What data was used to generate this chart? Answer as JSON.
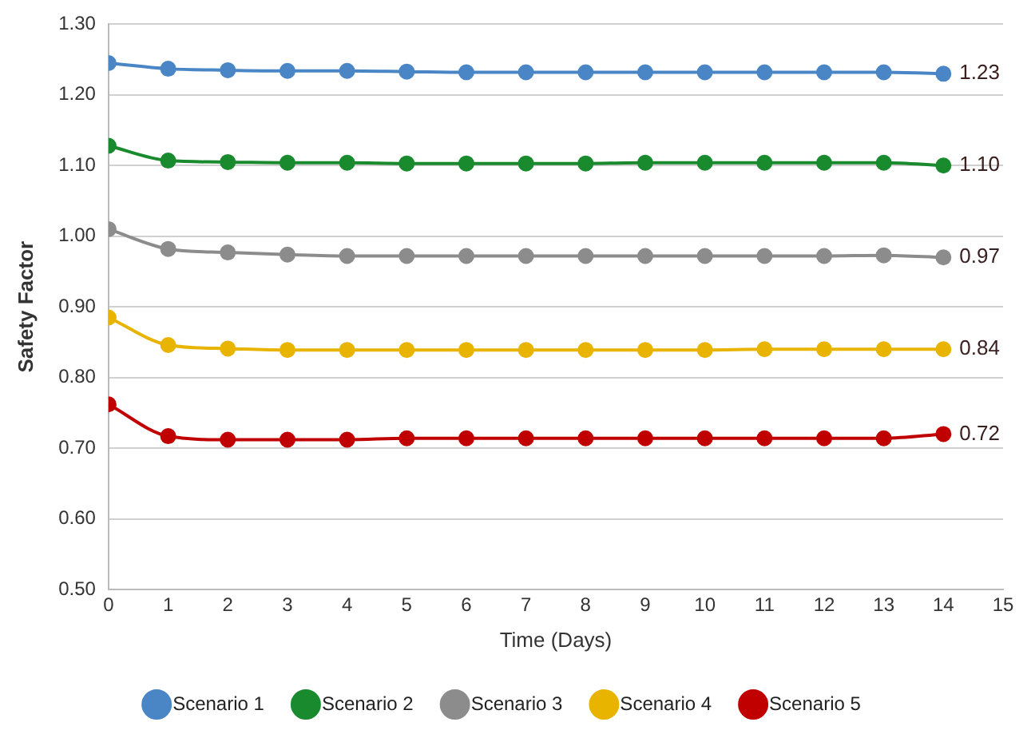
{
  "chart_data": {
    "type": "line",
    "xlabel": "Time (Days)",
    "ylabel": "Safety Factor",
    "x": [
      0,
      1,
      2,
      3,
      4,
      5,
      6,
      7,
      8,
      9,
      10,
      11,
      12,
      13,
      14
    ],
    "xlim": [
      0,
      15
    ],
    "xticks": [
      0,
      1,
      2,
      3,
      4,
      5,
      6,
      7,
      8,
      9,
      10,
      11,
      12,
      13,
      14,
      15
    ],
    "ylim": [
      0.5,
      1.3
    ],
    "yticks": [
      {
        "value": 0.5,
        "label": "0.50"
      },
      {
        "value": 0.6,
        "label": "0.60"
      },
      {
        "value": 0.7,
        "label": "0.70"
      },
      {
        "value": 0.8,
        "label": "0.80"
      },
      {
        "value": 0.9,
        "label": "0.90"
      },
      {
        "value": 1.0,
        "label": "1.00"
      },
      {
        "value": 1.1,
        "label": "1.10"
      },
      {
        "value": 1.2,
        "label": "1.20"
      },
      {
        "value": 1.3,
        "label": "1.30"
      }
    ],
    "grid": "y",
    "legend": "bottom",
    "marker": "circle",
    "line_style": "solid",
    "series": [
      {
        "name": "Scenario 1",
        "color": "#4a86c5",
        "values": [
          1.245,
          1.237,
          1.235,
          1.234,
          1.234,
          1.233,
          1.232,
          1.232,
          1.232,
          1.232,
          1.232,
          1.232,
          1.232,
          1.232,
          1.23
        ],
        "value_labels": [
          null,
          null,
          null,
          null,
          null,
          null,
          null,
          null,
          null,
          null,
          null,
          null,
          null,
          null,
          "1.23"
        ]
      },
      {
        "name": "Scenario 2",
        "color": "#1a8a2e",
        "values": [
          1.128,
          1.107,
          1.105,
          1.104,
          1.104,
          1.103,
          1.103,
          1.103,
          1.103,
          1.104,
          1.104,
          1.104,
          1.104,
          1.104,
          1.1
        ],
        "value_labels": [
          null,
          null,
          null,
          null,
          null,
          null,
          null,
          null,
          null,
          null,
          null,
          null,
          null,
          null,
          "1.10"
        ]
      },
      {
        "name": "Scenario 3",
        "color": "#8c8c8c",
        "values": [
          1.01,
          0.982,
          0.977,
          0.974,
          0.972,
          0.972,
          0.972,
          0.972,
          0.972,
          0.972,
          0.972,
          0.972,
          0.972,
          0.973,
          0.97
        ],
        "value_labels": [
          null,
          null,
          null,
          null,
          null,
          null,
          null,
          null,
          null,
          null,
          null,
          null,
          null,
          null,
          "0.97"
        ]
      },
      {
        "name": "Scenario 4",
        "color": "#e8b400",
        "values": [
          0.885,
          0.846,
          0.841,
          0.839,
          0.839,
          0.839,
          0.839,
          0.839,
          0.839,
          0.839,
          0.839,
          0.84,
          0.84,
          0.84,
          0.84
        ],
        "value_labels": [
          null,
          null,
          null,
          null,
          null,
          null,
          null,
          null,
          null,
          null,
          null,
          null,
          null,
          null,
          "0.84"
        ]
      },
      {
        "name": "Scenario 5",
        "color": "#c00000",
        "values": [
          0.762,
          0.717,
          0.712,
          0.712,
          0.712,
          0.714,
          0.714,
          0.714,
          0.714,
          0.714,
          0.714,
          0.714,
          0.714,
          0.714,
          0.72
        ],
        "value_labels": [
          null,
          null,
          null,
          null,
          null,
          null,
          null,
          null,
          null,
          null,
          null,
          null,
          null,
          null,
          "0.72"
        ]
      }
    ]
  }
}
